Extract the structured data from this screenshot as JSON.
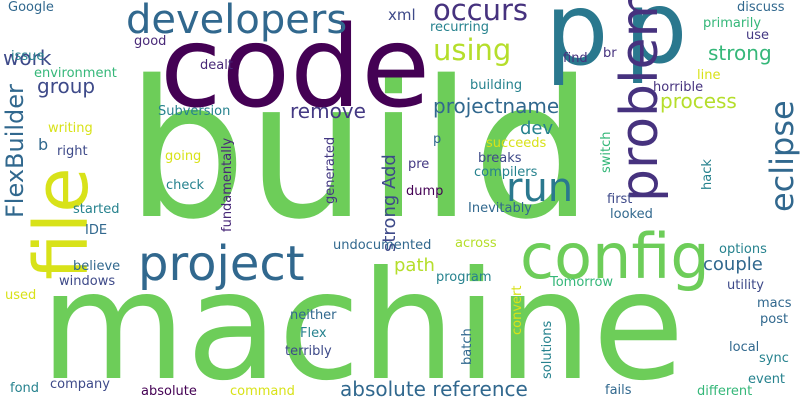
{
  "words": [
    {
      "text": "build",
      "color": "#6dcd59",
      "vertical": false
    },
    {
      "text": "machine",
      "color": "#6dcd59",
      "vertical": false
    },
    {
      "text": "code",
      "color": "#440154",
      "vertical": false
    },
    {
      "text": "p",
      "color": "#2a788e",
      "vertical": false
    },
    {
      "text": "p",
      "color": "#2a788e",
      "vertical": false
    },
    {
      "text": "file",
      "color": "#d8e219",
      "vertical": true
    },
    {
      "text": "config",
      "color": "#6dcd59",
      "vertical": false
    },
    {
      "text": "problem",
      "color": "#46327e",
      "vertical": true
    },
    {
      "text": "project",
      "color": "#31688e",
      "vertical": false
    },
    {
      "text": "developers",
      "color": "#31688e",
      "vertical": false
    },
    {
      "text": "run",
      "color": "#2a788e",
      "vertical": false
    },
    {
      "text": "eclipse",
      "color": "#31688e",
      "vertical": true
    },
    {
      "text": "FlexBuilder",
      "color": "#31688e",
      "vertical": true
    },
    {
      "text": "using",
      "color": "#b5de2b",
      "vertical": false
    },
    {
      "text": "occurs",
      "color": "#46327e",
      "vertical": false
    },
    {
      "text": "absolute reference",
      "color": "#31688e",
      "vertical": false
    },
    {
      "text": "projectname",
      "color": "#31688e",
      "vertical": false
    },
    {
      "text": "process",
      "color": "#b5de2b",
      "vertical": false
    },
    {
      "text": "strong",
      "color": "#35b779",
      "vertical": false
    },
    {
      "text": "group",
      "color": "#3e4a89",
      "vertical": false
    },
    {
      "text": "work",
      "color": "#3e4a89",
      "vertical": false
    },
    {
      "text": "remove",
      "color": "#443983",
      "vertical": false
    },
    {
      "text": "couple",
      "color": "#31688e",
      "vertical": false
    },
    {
      "text": "path",
      "color": "#b5de2b",
      "vertical": false
    },
    {
      "text": "strong Add",
      "color": "#3e4a89",
      "vertical": true
    },
    {
      "text": "dev",
      "color": "#26828e",
      "vertical": false
    },
    {
      "text": "xml",
      "color": "#3e4a89",
      "vertical": false
    },
    {
      "text": "Google",
      "color": "#31688e",
      "vertical": false
    },
    {
      "text": "recurring",
      "color": "#26828e",
      "vertical": false
    },
    {
      "text": "discuss",
      "color": "#31688e",
      "vertical": false
    },
    {
      "text": "primarily",
      "color": "#35b779",
      "vertical": false
    },
    {
      "text": "use",
      "color": "#443983",
      "vertical": false
    },
    {
      "text": "good",
      "color": "#482878",
      "vertical": false
    },
    {
      "text": "issue",
      "color": "#26828e",
      "vertical": false
    },
    {
      "text": "environment",
      "color": "#35b779",
      "vertical": false
    },
    {
      "text": "dealt",
      "color": "#482878",
      "vertical": false
    },
    {
      "text": "find",
      "color": "#46327e",
      "vertical": false
    },
    {
      "text": "br",
      "color": "#46327e",
      "vertical": false
    },
    {
      "text": "line",
      "color": "#d8e219",
      "vertical": false
    },
    {
      "text": "building",
      "color": "#26828e",
      "vertical": false
    },
    {
      "text": "horrible",
      "color": "#46327e",
      "vertical": false
    },
    {
      "text": "Subversion",
      "color": "#26828e",
      "vertical": false
    },
    {
      "text": "writing",
      "color": "#d8e219",
      "vertical": false
    },
    {
      "text": "right",
      "color": "#3e4a89",
      "vertical": false
    },
    {
      "text": "b",
      "color": "#31688e",
      "vertical": false
    },
    {
      "text": "p",
      "color": "#31688e",
      "vertical": false
    },
    {
      "text": "succeeds",
      "color": "#d8e219",
      "vertical": false
    },
    {
      "text": "breaks",
      "color": "#3e4a89",
      "vertical": false
    },
    {
      "text": "compilers",
      "color": "#26828e",
      "vertical": false
    },
    {
      "text": "pre",
      "color": "#443983",
      "vertical": false
    },
    {
      "text": "dump",
      "color": "#440154",
      "vertical": false
    },
    {
      "text": "going",
      "color": "#d8e219",
      "vertical": false
    },
    {
      "text": "check",
      "color": "#26828e",
      "vertical": false
    },
    {
      "text": "fundamentally",
      "color": "#482878",
      "vertical": true
    },
    {
      "text": "generated",
      "color": "#443983",
      "vertical": true
    },
    {
      "text": "started",
      "color": "#26828e",
      "vertical": false
    },
    {
      "text": "Inevitably",
      "color": "#31688e",
      "vertical": false
    },
    {
      "text": "first",
      "color": "#3e4a89",
      "vertical": false
    },
    {
      "text": "looked",
      "color": "#31688e",
      "vertical": false
    },
    {
      "text": "switch",
      "color": "#35b779",
      "vertical": true
    },
    {
      "text": "hack",
      "color": "#26828e",
      "vertical": true
    },
    {
      "text": "IDE",
      "color": "#31688e",
      "vertical": false
    },
    {
      "text": "undocumented",
      "color": "#31688e",
      "vertical": false
    },
    {
      "text": "across",
      "color": "#b5de2b",
      "vertical": false
    },
    {
      "text": "options",
      "color": "#26828e",
      "vertical": false
    },
    {
      "text": "believe",
      "color": "#31688e",
      "vertical": false
    },
    {
      "text": "program",
      "color": "#26828e",
      "vertical": false
    },
    {
      "text": "Tomorrow",
      "color": "#35b779",
      "vertical": false
    },
    {
      "text": "utility",
      "color": "#3e4a89",
      "vertical": false
    },
    {
      "text": "windows",
      "color": "#3e4a89",
      "vertical": false
    },
    {
      "text": "used",
      "color": "#d8e219",
      "vertical": false
    },
    {
      "text": "convert",
      "color": "#d8e219",
      "vertical": true
    },
    {
      "text": "macs",
      "color": "#31688e",
      "vertical": false
    },
    {
      "text": "post",
      "color": "#31688e",
      "vertical": false
    },
    {
      "text": "neither",
      "color": "#31688e",
      "vertical": false
    },
    {
      "text": "Flex",
      "color": "#26828e",
      "vertical": false
    },
    {
      "text": "terribly",
      "color": "#3e4a89",
      "vertical": false
    },
    {
      "text": "batch",
      "color": "#31688e",
      "vertical": true
    },
    {
      "text": "solutions",
      "color": "#26828e",
      "vertical": true
    },
    {
      "text": "local",
      "color": "#31688e",
      "vertical": false
    },
    {
      "text": "sync",
      "color": "#26828e",
      "vertical": false
    },
    {
      "text": "event",
      "color": "#26828e",
      "vertical": false
    },
    {
      "text": "fond",
      "color": "#26828e",
      "vertical": false
    },
    {
      "text": "company",
      "color": "#3e4a89",
      "vertical": false
    },
    {
      "text": "absolute",
      "color": "#440154",
      "vertical": false
    },
    {
      "text": "command",
      "color": "#d8e219",
      "vertical": false
    },
    {
      "text": "fails",
      "color": "#31688e",
      "vertical": false
    },
    {
      "text": "different",
      "color": "#35b779",
      "vertical": false
    }
  ]
}
